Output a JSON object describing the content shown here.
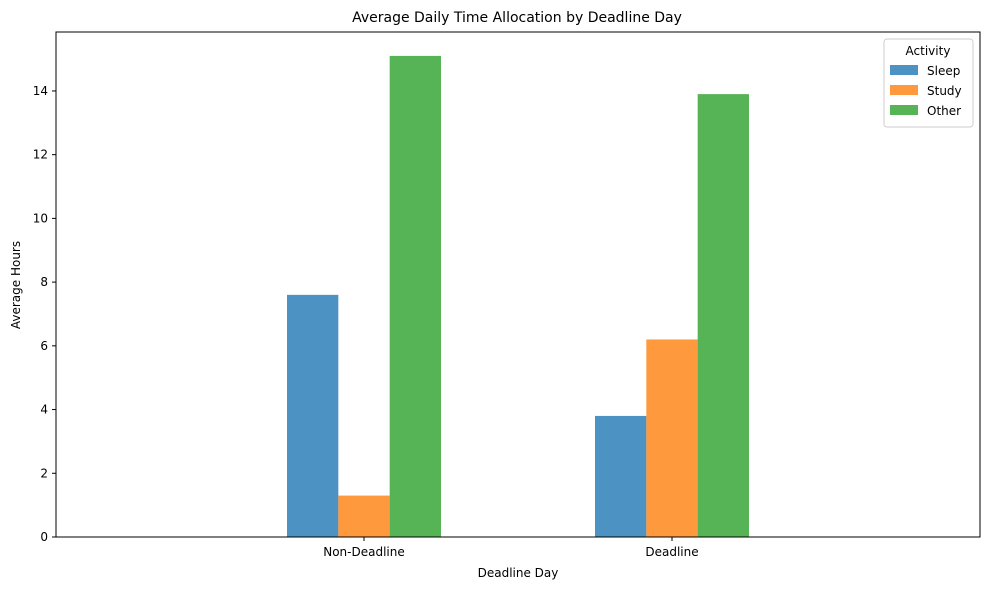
{
  "chart_data": {
    "type": "bar",
    "title": "Average Daily Time Allocation by Deadline Day",
    "xlabel": "Deadline Day",
    "ylabel": "Average Hours",
    "categories": [
      "Non-Deadline",
      "Deadline"
    ],
    "series": [
      {
        "name": "Sleep",
        "values": [
          7.6,
          3.8
        ],
        "color": "#1f77b4"
      },
      {
        "name": "Study",
        "values": [
          1.3,
          6.2
        ],
        "color": "#ff7f0e"
      },
      {
        "name": "Other",
        "values": [
          15.1,
          13.9
        ],
        "color": "#2ca02c"
      }
    ],
    "bar_opacity": 0.8,
    "ylim": [
      0,
      15.85
    ],
    "yticks": [
      0,
      2,
      4,
      6,
      8,
      10,
      12,
      14
    ],
    "grid": false,
    "legend": {
      "title": "Activity",
      "position": "top-right"
    }
  }
}
